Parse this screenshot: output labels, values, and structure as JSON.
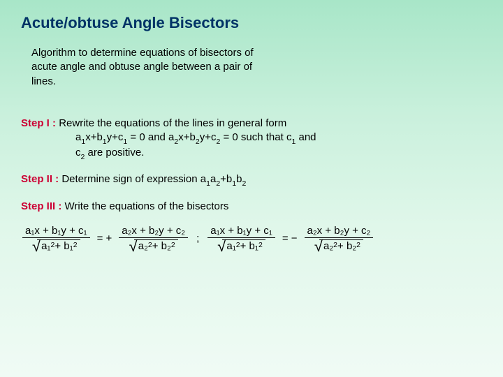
{
  "title": "Acute/obtuse Angle Bisectors",
  "intro": "Algorithm to determine equations of bisectors of acute angle and obtuse angle between a pair of lines.",
  "steps": {
    "s1": {
      "label": "Step I :",
      "text1": "Rewrite the equations of the lines in general form",
      "text2_a": "a",
      "text2_b": "x+b",
      "text2_c": "y+c",
      "text2_d": " = 0 and a",
      "text2_e": "x+b",
      "text2_f": "y+c",
      "text2_g": " = 0 such that c",
      "text2_h": " and",
      "text3_a": "c",
      "text3_b": " are positive."
    },
    "s2": {
      "label": "Step II :",
      "text_a": "Determine sign of expression a",
      "text_b": "a",
      "text_c": "+b",
      "text_d": "b"
    },
    "s3": {
      "label": "Step III :",
      "text": "Write the equations of the bisectors"
    }
  },
  "formula": {
    "num1": "a₁x + b₁y + c₁",
    "den1_a": "a₁",
    "den1_b": " + b₁",
    "num2": "a₂x + b₂y + c₂",
    "den2_a": "a₂",
    "den2_b": " + b₂",
    "eq_plus": "= +",
    "eq_minus": "= −",
    "semicolon": ";"
  },
  "colors": {
    "title_color": "#003366",
    "step_label_color": "#cc0033",
    "bg_top": "#a8e6c8",
    "bg_bottom": "#f0fbf5"
  }
}
